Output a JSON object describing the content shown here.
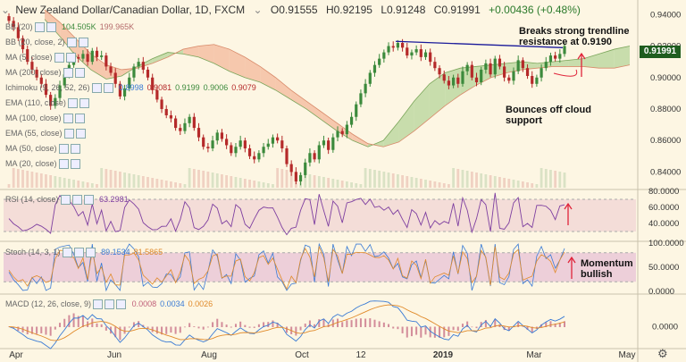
{
  "header": {
    "title": "New Zealand Dollar/Canadian Dollar, 1D, FXCM",
    "open": "O0.91555",
    "high": "H0.92195",
    "low": "L0.91248",
    "close": "C0.91991",
    "change": "+0.00436 (+0.48%)"
  },
  "indicators_overlay": [
    {
      "label": "BB (20)",
      "values": [
        "104.505K",
        "199.965K"
      ]
    },
    {
      "label": "BB (20, close, 2)",
      "values": []
    },
    {
      "label": "MA (5, close)",
      "values": []
    },
    {
      "label": "MA (200, close)",
      "values": []
    },
    {
      "label": "Ichimoku (9, 26, 52, 26)",
      "values": [
        "0.8998",
        "0.9081",
        "0.9199",
        "0.9006",
        "0.9079"
      ]
    },
    {
      "label": "EMA (110, close)",
      "values": []
    },
    {
      "label": "MA (100, close)",
      "values": []
    },
    {
      "label": "EMA (55, close)",
      "values": []
    },
    {
      "label": "MA (50, close)",
      "values": []
    },
    {
      "label": "MA (20, close)",
      "values": []
    }
  ],
  "last_price": "0.91991",
  "annotations": {
    "breakout": [
      "Breaks strong trendline",
      "resistance at 0.9190"
    ],
    "cloud": [
      "Bounces off cloud",
      "support"
    ],
    "momentum": [
      "Momentum",
      "bullish"
    ]
  },
  "sub_panels": {
    "rsi": {
      "label": "RSI (14, close)",
      "value": "63.2981"
    },
    "stoch": {
      "label": "Stoch (14, 3, 1)",
      "values": [
        "89.1534",
        "81.5865"
      ]
    },
    "macd": {
      "label": "MACD (12, 26, close, 9)",
      "values": [
        "0.0008",
        "0.0034",
        "0.0026"
      ]
    }
  },
  "colors": {
    "up": "#3c8a3c",
    "down": "#b52a2a",
    "trendline": "#1a1a9a",
    "arrow": "#e0243a",
    "cloud_bull": "#b5d49a",
    "cloud_bear": "#f3b89b",
    "rsi_line": "#7e3fa0",
    "stoch_k": "#3a7bd5",
    "stoch_d": "#e08a2a",
    "macd_line": "#3a7bd5",
    "signal_line": "#e08a2a",
    "hist": "#c0607a"
  },
  "chart_data": [
    {
      "type": "candlestick",
      "title": "New Zealand Dollar/Canadian Dollar, 1D, FXCM",
      "x_ticks": [
        "Apr",
        "Jun",
        "Aug",
        "Oct",
        "12",
        "2019",
        "Mar",
        "May"
      ],
      "y_ticks": [
        0.84,
        0.86,
        0.88,
        0.9,
        0.92,
        0.94
      ],
      "ylim": [
        0.83,
        0.947
      ],
      "trendline": {
        "from": [
          "Sep",
          0.923
        ],
        "to": [
          "Mar",
          0.919
        ]
      },
      "ichimoku_cloud": {
        "span_a": [
          0.937,
          0.926,
          0.914,
          0.905,
          0.899,
          0.901,
          0.907,
          0.912,
          0.916,
          0.915,
          0.913,
          0.909,
          0.904,
          0.9,
          0.897,
          0.892,
          0.886,
          0.88,
          0.873,
          0.866,
          0.86,
          0.856,
          0.86,
          0.872,
          0.885,
          0.896,
          0.903,
          0.906,
          0.907,
          0.908,
          0.909,
          0.91,
          0.909,
          0.91,
          0.911,
          0.912,
          0.915,
          0.918,
          0.92
        ],
        "span_b": [
          0.943,
          0.935,
          0.925,
          0.915,
          0.908,
          0.905,
          0.906,
          0.909,
          0.913,
          0.918,
          0.92,
          0.921,
          0.918,
          0.913,
          0.907,
          0.9,
          0.892,
          0.885,
          0.878,
          0.871,
          0.864,
          0.858,
          0.856,
          0.859,
          0.866,
          0.874,
          0.882,
          0.889,
          0.895,
          0.9,
          0.903,
          0.905,
          0.906,
          0.907,
          0.907,
          0.907,
          0.906,
          0.906,
          0.908
        ]
      },
      "close": [
        0.936,
        0.932,
        0.925,
        0.918,
        0.91,
        0.905,
        0.9,
        0.896,
        0.889,
        0.882,
        0.887,
        0.895,
        0.902,
        0.908,
        0.913,
        0.912,
        0.915,
        0.91,
        0.917,
        0.913,
        0.914,
        0.907,
        0.903,
        0.896,
        0.888,
        0.893,
        0.9,
        0.907,
        0.91,
        0.905,
        0.9,
        0.892,
        0.886,
        0.88,
        0.876,
        0.874,
        0.868,
        0.866,
        0.871,
        0.875,
        0.868,
        0.862,
        0.856,
        0.855,
        0.86,
        0.865,
        0.861,
        0.857,
        0.852,
        0.856,
        0.86,
        0.855,
        0.85,
        0.848,
        0.852,
        0.856,
        0.858,
        0.862,
        0.86,
        0.855,
        0.845,
        0.84,
        0.834,
        0.838,
        0.846,
        0.852,
        0.848,
        0.857,
        0.86,
        0.854,
        0.862,
        0.866,
        0.864,
        0.87,
        0.875,
        0.883,
        0.89,
        0.896,
        0.903,
        0.908,
        0.912,
        0.916,
        0.92,
        0.919,
        0.922,
        0.919,
        0.914,
        0.916,
        0.918,
        0.913,
        0.916,
        0.91,
        0.906,
        0.902,
        0.898,
        0.895,
        0.9,
        0.896,
        0.904,
        0.908,
        0.9,
        0.897,
        0.905,
        0.909,
        0.902,
        0.912,
        0.907,
        0.9,
        0.898,
        0.904,
        0.911,
        0.906,
        0.901,
        0.896,
        0.9,
        0.906,
        0.91,
        0.914,
        0.912,
        0.915,
        0.92
      ],
      "panels": [
        {
          "name": "RSI (14, close)",
          "type": "line",
          "ylim": [
            20,
            80
          ],
          "y_ticks": [
            40,
            60,
            80
          ],
          "last": 63.2981
        },
        {
          "name": "Stoch (14, 3, 1)",
          "type": "line",
          "ylim": [
            0,
            100
          ],
          "y_ticks": [
            0,
            50,
            100
          ],
          "last_k": 89.1534,
          "last_d": 81.5865
        },
        {
          "name": "MACD (12, 26, close, 9)",
          "type": "line",
          "y_ticks": [
            0.0
          ],
          "last_macd": 0.0034,
          "last_signal": 0.0026,
          "last_hist": 0.0008
        }
      ]
    }
  ]
}
